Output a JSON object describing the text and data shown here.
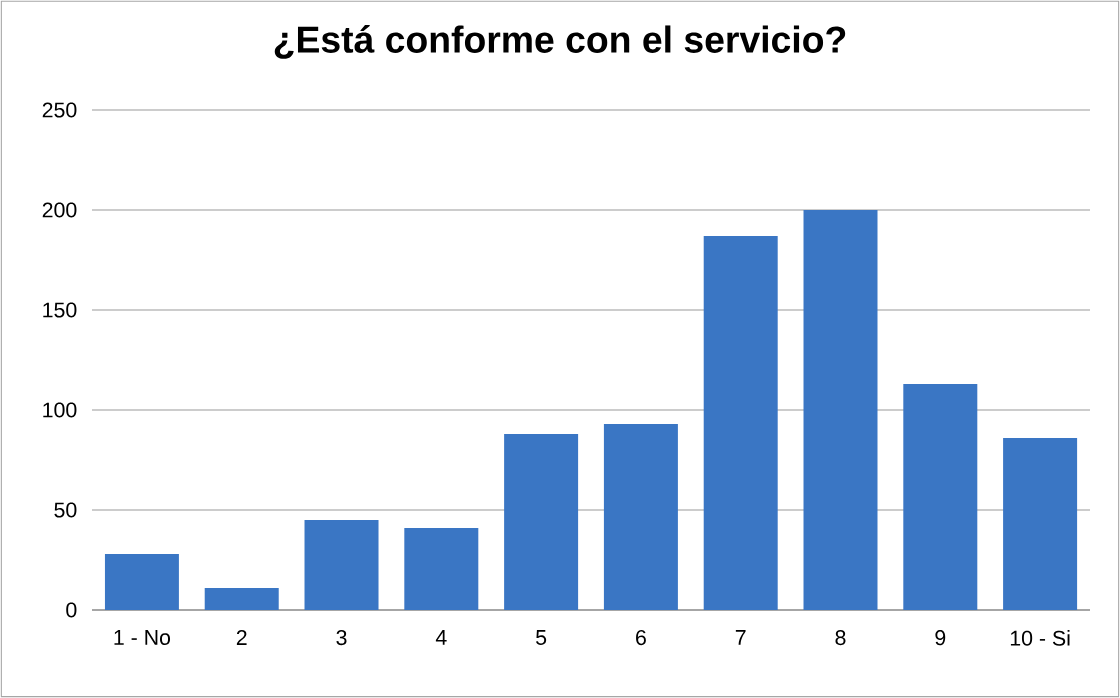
{
  "chart_data": {
    "type": "bar",
    "title": "¿Está conforme con el servicio?",
    "categories": [
      "1 - No",
      "2",
      "3",
      "4",
      "5",
      "6",
      "7",
      "8",
      "9",
      "10 - Si"
    ],
    "values": [
      28,
      11,
      45,
      41,
      88,
      93,
      187,
      200,
      113,
      86
    ],
    "color": "#3a76c4",
    "ylim": [
      0,
      250
    ],
    "yticks": [
      0,
      50,
      100,
      150,
      200,
      250
    ],
    "grid": "y"
  }
}
